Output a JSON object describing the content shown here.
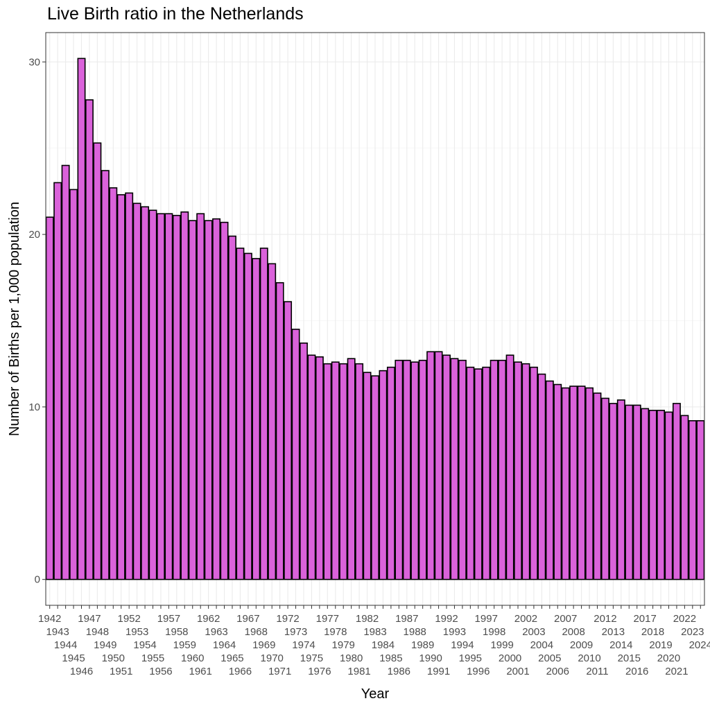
{
  "chart_data": {
    "type": "bar",
    "title": "Live Birth ratio in the Netherlands",
    "xlabel": "Year",
    "ylabel": "Number of Births per 1,000 population",
    "ylim": [
      -1.5,
      31.7
    ],
    "yticks": [
      0,
      10,
      20,
      30
    ],
    "grid": true,
    "legend": "none",
    "bar_fill": "#DA62DA",
    "bar_stroke": "#000000",
    "categories": [
      "1942",
      "1943",
      "1944",
      "1945",
      "1946",
      "1947",
      "1948",
      "1949",
      "1950",
      "1951",
      "1952",
      "1953",
      "1954",
      "1955",
      "1956",
      "1957",
      "1958",
      "1959",
      "1960",
      "1961",
      "1962",
      "1963",
      "1964",
      "1965",
      "1966",
      "1967",
      "1968",
      "1969",
      "1970",
      "1971",
      "1972",
      "1973",
      "1974",
      "1975",
      "1976",
      "1977",
      "1978",
      "1979",
      "1980",
      "1981",
      "1982",
      "1983",
      "1984",
      "1985",
      "1986",
      "1987",
      "1988",
      "1989",
      "1990",
      "1991",
      "1992",
      "1993",
      "1994",
      "1995",
      "1996",
      "1997",
      "1998",
      "1999",
      "2000",
      "2001",
      "2002",
      "2003",
      "2004",
      "2005",
      "2006",
      "2007",
      "2008",
      "2009",
      "2010",
      "2011",
      "2012",
      "2013",
      "2014",
      "2015",
      "2016",
      "2017",
      "2018",
      "2019",
      "2020",
      "2021",
      "2022",
      "2023",
      "2024"
    ],
    "values": [
      21.0,
      23.0,
      24.0,
      22.6,
      30.2,
      27.8,
      25.3,
      23.7,
      22.7,
      22.3,
      22.4,
      21.8,
      21.6,
      21.4,
      21.2,
      21.2,
      21.1,
      21.3,
      20.8,
      21.2,
      20.8,
      20.9,
      20.7,
      19.9,
      19.2,
      18.9,
      18.6,
      19.2,
      18.3,
      17.2,
      16.1,
      14.5,
      13.7,
      13.0,
      12.9,
      12.5,
      12.6,
      12.5,
      12.8,
      12.5,
      12.0,
      11.8,
      12.1,
      12.3,
      12.7,
      12.7,
      12.6,
      12.7,
      13.2,
      13.2,
      13.0,
      12.8,
      12.7,
      12.3,
      12.2,
      12.3,
      12.7,
      12.7,
      13.0,
      12.6,
      12.5,
      12.3,
      11.9,
      11.5,
      11.3,
      11.1,
      11.2,
      11.2,
      11.1,
      10.8,
      10.5,
      10.2,
      10.4,
      10.1,
      10.1,
      9.9,
      9.8,
      9.8,
      9.7,
      10.2,
      9.5,
      9.2,
      9.2
    ]
  }
}
